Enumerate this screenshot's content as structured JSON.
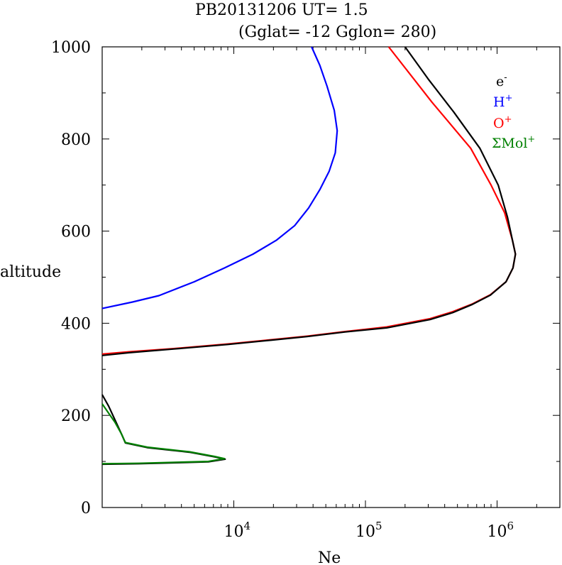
{
  "title": {
    "line1": "PB20131206   UT=  1.5",
    "line2": "(Gglat= -12   Gglon=  280)"
  },
  "colors": {
    "e": "#000000",
    "H": "#0000ff",
    "O": "#ff0000",
    "Mol": "#008000",
    "axis": "#000000"
  },
  "chart_data": {
    "type": "line",
    "title": "PB20131206   UT=  1.5  (Gglat= -12   Gglon=  280)",
    "xlabel": "Ne",
    "ylabel": "altitude",
    "xscale": "log",
    "xlim": [
      1000,
      3000000
    ],
    "ylim": [
      0,
      1000
    ],
    "x_ticks": [
      {
        "value": 10000,
        "base": "10",
        "exp": "4"
      },
      {
        "value": 100000,
        "base": "10",
        "exp": "5"
      },
      {
        "value": 1000000,
        "base": "10",
        "exp": "6"
      }
    ],
    "y_ticks": [
      "0",
      "200",
      "400",
      "600",
      "800",
      "1000"
    ],
    "legend_position": "top-right",
    "legend": [
      {
        "key": "e",
        "base": "e",
        "sup": "-"
      },
      {
        "key": "H",
        "base": "H",
        "sup": "+"
      },
      {
        "key": "O",
        "base": "O",
        "sup": "+"
      },
      {
        "key": "Mol",
        "base": "ΣMol",
        "sup": "+"
      }
    ],
    "series": [
      {
        "key": "H",
        "name": "H+",
        "points": [
          [
            1000,
            432
          ],
          [
            1700,
            446
          ],
          [
            2700,
            460
          ],
          [
            5000,
            490
          ],
          [
            8500,
            520
          ],
          [
            14000,
            550
          ],
          [
            21000,
            580
          ],
          [
            29000,
            612
          ],
          [
            37000,
            650
          ],
          [
            45000,
            690
          ],
          [
            53000,
            730
          ],
          [
            59000,
            770
          ],
          [
            61000,
            818
          ],
          [
            58000,
            862
          ],
          [
            51000,
            915
          ],
          [
            45000,
            960
          ],
          [
            39000,
            1000
          ]
        ]
      },
      {
        "key": "O",
        "name": "O+",
        "points": [
          [
            1000,
            333
          ],
          [
            1600,
            338
          ],
          [
            3500,
            345
          ],
          [
            9000,
            355
          ],
          [
            16000,
            362
          ],
          [
            36000,
            372
          ],
          [
            70000,
            382
          ],
          [
            145000,
            392
          ],
          [
            310000,
            410
          ],
          [
            460000,
            425
          ],
          [
            650000,
            442
          ],
          [
            890000,
            462
          ],
          [
            1170000,
            490
          ],
          [
            1320000,
            520
          ],
          [
            1380000,
            550
          ],
          [
            1310000,
            580
          ],
          [
            1140000,
            640
          ],
          [
            900000,
            700
          ],
          [
            630000,
            780
          ],
          [
            320000,
            880
          ],
          [
            150000,
            1000
          ]
        ]
      },
      {
        "key": "e",
        "name": "e-",
        "points": [
          [
            1000,
            330
          ],
          [
            1600,
            336
          ],
          [
            3500,
            344
          ],
          [
            9000,
            354
          ],
          [
            16000,
            361
          ],
          [
            36000,
            371
          ],
          [
            70000,
            381
          ],
          [
            145000,
            390
          ],
          [
            310000,
            408
          ],
          [
            460000,
            423
          ],
          [
            650000,
            441
          ],
          [
            890000,
            461
          ],
          [
            1170000,
            490
          ],
          [
            1320000,
            520
          ],
          [
            1380000,
            550
          ],
          [
            1310000,
            580
          ],
          [
            1200000,
            630
          ],
          [
            1020000,
            700
          ],
          [
            740000,
            780
          ],
          [
            470000,
            858
          ],
          [
            300000,
            930
          ],
          [
            200000,
            1000
          ]
        ]
      },
      {
        "key": "e",
        "name": "e-",
        "points": [
          [
            1000,
            94
          ],
          [
            1900,
            95
          ],
          [
            6400,
            99
          ],
          [
            8600,
            105
          ],
          [
            7100,
            110
          ],
          [
            4600,
            120
          ],
          [
            2200,
            130
          ],
          [
            1500,
            140
          ],
          [
            1450,
            150
          ],
          [
            1400,
            160
          ],
          [
            1300,
            180
          ],
          [
            1120,
            220
          ],
          [
            1000,
            245
          ]
        ]
      },
      {
        "key": "Mol",
        "name": "ΣMol+",
        "points": [
          [
            1000,
            95
          ],
          [
            1900,
            96
          ],
          [
            6400,
            100
          ],
          [
            8500,
            106
          ],
          [
            7100,
            111
          ],
          [
            4600,
            121
          ],
          [
            2200,
            131
          ],
          [
            1500,
            141
          ],
          [
            1400,
            160
          ],
          [
            1250,
            185
          ],
          [
            1000,
            225
          ]
        ]
      }
    ]
  }
}
